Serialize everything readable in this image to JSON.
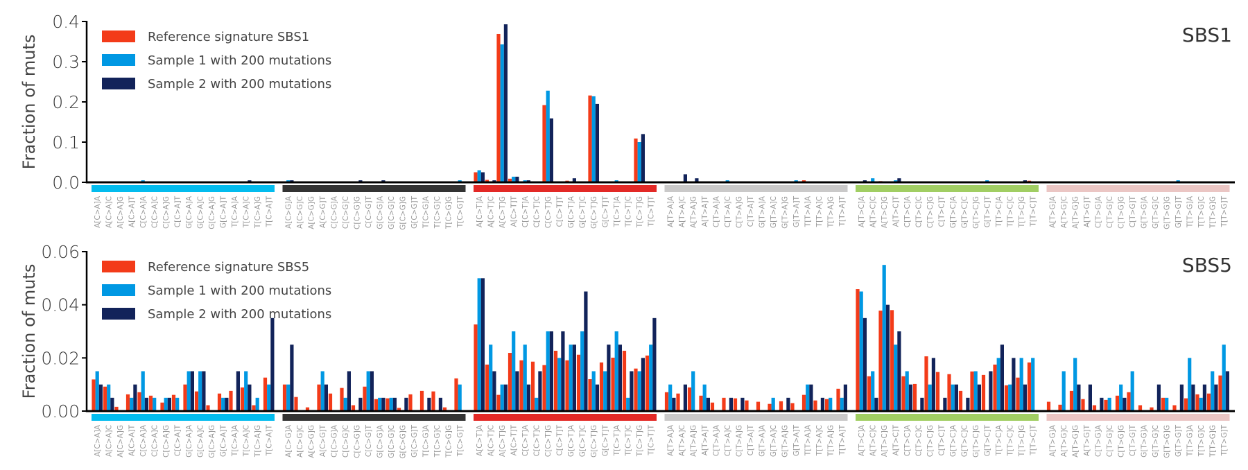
{
  "colors": {
    "reference": "#F33B19",
    "sample1": "#0098E3",
    "sample2": "#12235A",
    "groups": [
      "#03BCEE",
      "#333333",
      "#E32926",
      "#CAC9C9",
      "#A1CE63",
      "#EBC6C4"
    ]
  },
  "chart_data": [
    {
      "type": "bar",
      "title": "SBS1",
      "ylabel": "Fraction of muts",
      "ylim": [
        0,
        0.4
      ],
      "yticks": [
        "0.0",
        "0.1",
        "0.2",
        "0.3",
        "0.4"
      ],
      "ytick_values": [
        0,
        0.1,
        0.2,
        0.3,
        0.4
      ],
      "grid": false,
      "legend_placement": "top-left",
      "categories": [
        "A[C>A]A",
        "A[C>A]C",
        "A[C>A]G",
        "A[C>A]T",
        "C[C>A]A",
        "C[C>A]C",
        "C[C>A]G",
        "C[C>A]T",
        "G[C>A]A",
        "G[C>A]C",
        "G[C>A]G",
        "G[C>A]T",
        "T[C>A]A",
        "T[C>A]C",
        "T[C>A]G",
        "T[C>A]T",
        "A[C>G]A",
        "A[C>G]C",
        "A[C>G]G",
        "A[C>G]T",
        "C[C>G]A",
        "C[C>G]C",
        "C[C>G]G",
        "C[C>G]T",
        "G[C>G]A",
        "G[C>G]C",
        "G[C>G]G",
        "G[C>G]T",
        "T[C>G]A",
        "T[C>G]C",
        "T[C>G]G",
        "T[C>G]T",
        "A[C>T]A",
        "A[C>T]C",
        "A[C>T]G",
        "A[C>T]T",
        "C[C>T]A",
        "C[C>T]C",
        "C[C>T]G",
        "C[C>T]T",
        "G[C>T]A",
        "G[C>T]C",
        "G[C>T]G",
        "G[C>T]T",
        "T[C>T]A",
        "T[C>T]C",
        "T[C>T]G",
        "T[C>T]T",
        "A[T>A]A",
        "A[T>A]C",
        "A[T>A]G",
        "A[T>A]T",
        "C[T>A]A",
        "C[T>A]C",
        "C[T>A]G",
        "C[T>A]T",
        "G[T>A]A",
        "G[T>A]C",
        "G[T>A]G",
        "G[T>A]T",
        "T[T>A]A",
        "T[T>A]C",
        "T[T>A]G",
        "T[T>A]T",
        "A[T>C]A",
        "A[T>C]C",
        "A[T>C]G",
        "A[T>C]T",
        "C[T>C]A",
        "C[T>C]C",
        "C[T>C]G",
        "C[T>C]T",
        "G[T>C]A",
        "G[T>C]C",
        "G[T>C]G",
        "G[T>C]T",
        "T[T>C]A",
        "T[T>C]C",
        "T[T>C]G",
        "T[T>C]T",
        "A[T>G]A",
        "A[T>G]C",
        "A[T>G]G",
        "A[T>G]T",
        "C[T>G]A",
        "C[T>G]C",
        "C[T>G]G",
        "C[T>G]T",
        "G[T>G]A",
        "G[T>G]C",
        "G[T>G]G",
        "G[T>G]T",
        "T[T>G]A",
        "T[T>G]C",
        "T[T>G]G",
        "T[T>G]T"
      ],
      "series": [
        {
          "name": "Reference signature SBS1",
          "values": [
            0,
            0.002,
            0,
            0,
            0,
            0,
            0,
            0,
            0,
            0,
            0,
            0,
            0,
            0.002,
            0,
            0,
            0,
            0,
            0,
            0,
            0,
            0,
            0,
            0,
            0,
            0,
            0,
            0,
            0,
            0,
            0,
            0,
            0.025,
            0.006,
            0.369,
            0.009,
            0.001,
            0,
            0.192,
            0,
            0.004,
            0,
            0.216,
            0,
            0,
            0,
            0.109,
            0,
            0,
            0.002,
            0,
            0,
            0,
            0,
            0,
            0,
            0,
            0,
            0,
            0,
            0.005,
            0,
            0,
            0.002,
            0,
            0,
            0.003,
            0,
            0.002,
            0,
            0,
            0,
            0,
            0,
            0,
            0,
            0,
            0,
            0,
            0.004,
            0,
            0,
            0,
            0,
            0,
            0,
            0,
            0,
            0,
            0,
            0,
            0,
            0,
            0,
            0,
            0
          ]
        },
        {
          "name": "Sample 1 with 200 mutations",
          "values": [
            0,
            0,
            0,
            0,
            0.005,
            0,
            0,
            0,
            0,
            0,
            0,
            0,
            0,
            0,
            0,
            0,
            0.005,
            0,
            0,
            0,
            0,
            0,
            0,
            0,
            0,
            0,
            0,
            0,
            0,
            0,
            0,
            0.005,
            0.03,
            0,
            0.343,
            0.014,
            0.005,
            0,
            0.228,
            0,
            0,
            0,
            0.214,
            0,
            0.005,
            0,
            0.1,
            0,
            0,
            0,
            0,
            0,
            0,
            0.005,
            0,
            0,
            0,
            0,
            0,
            0.005,
            0,
            0,
            0,
            0,
            0,
            0.01,
            0,
            0.005,
            0,
            0,
            0,
            0,
            0,
            0,
            0,
            0.005,
            0,
            0,
            0,
            0,
            0,
            0,
            0,
            0,
            0,
            0,
            0,
            0,
            0,
            0,
            0,
            0.005,
            0,
            0,
            0,
            0
          ]
        },
        {
          "name": "Sample 2 with 200 mutations",
          "values": [
            0,
            0,
            0,
            0,
            0,
            0,
            0,
            0,
            0,
            0,
            0,
            0,
            0,
            0.005,
            0,
            0,
            0.005,
            0,
            0,
            0,
            0,
            0,
            0.005,
            0,
            0.005,
            0,
            0,
            0,
            0,
            0,
            0,
            0,
            0.025,
            0.005,
            0.393,
            0.014,
            0.005,
            0,
            0.159,
            0,
            0.01,
            0,
            0.195,
            0,
            0,
            0,
            0.12,
            0,
            0,
            0.02,
            0.01,
            0,
            0,
            0,
            0,
            0,
            0,
            0,
            0,
            0,
            0,
            0,
            0,
            0,
            0.005,
            0,
            0,
            0.01,
            0,
            0,
            0,
            0,
            0,
            0,
            0,
            0,
            0,
            0,
            0.005,
            0,
            0,
            0,
            0,
            0,
            0,
            0,
            0,
            0,
            0,
            0,
            0,
            0,
            0,
            0,
            0,
            0
          ]
        }
      ]
    },
    {
      "type": "bar",
      "title": "SBS5",
      "ylabel": "Fraction of muts",
      "ylim": [
        0,
        0.06
      ],
      "yticks": [
        "0.00",
        "0.02",
        "0.04",
        "0.06"
      ],
      "ytick_values": [
        0,
        0.02,
        0.04,
        0.06
      ],
      "grid": false,
      "legend_placement": "top-left",
      "categories": [
        "A[C>A]A",
        "A[C>A]C",
        "A[C>A]G",
        "A[C>A]T",
        "C[C>A]A",
        "C[C>A]C",
        "C[C>A]G",
        "C[C>A]T",
        "G[C>A]A",
        "G[C>A]C",
        "G[C>A]G",
        "G[C>A]T",
        "T[C>A]A",
        "T[C>A]C",
        "T[C>A]G",
        "T[C>A]T",
        "A[C>G]A",
        "A[C>G]C",
        "A[C>G]G",
        "A[C>G]T",
        "C[C>G]A",
        "C[C>G]C",
        "C[C>G]G",
        "C[C>G]T",
        "G[C>G]A",
        "G[C>G]C",
        "G[C>G]G",
        "G[C>G]T",
        "T[C>G]A",
        "T[C>G]C",
        "T[C>G]G",
        "T[C>G]T",
        "A[C>T]A",
        "A[C>T]C",
        "A[C>T]G",
        "A[C>T]T",
        "C[C>T]A",
        "C[C>T]C",
        "C[C>T]G",
        "C[C>T]T",
        "G[C>T]A",
        "G[C>T]C",
        "G[C>T]G",
        "G[C>T]T",
        "T[C>T]A",
        "T[C>T]C",
        "T[C>T]G",
        "T[C>T]T",
        "A[T>A]A",
        "A[T>A]C",
        "A[T>A]G",
        "A[T>A]T",
        "C[T>A]A",
        "C[T>A]C",
        "C[T>A]G",
        "C[T>A]T",
        "G[T>A]A",
        "G[T>A]C",
        "G[T>A]G",
        "G[T>A]T",
        "T[T>A]A",
        "T[T>A]C",
        "T[T>A]G",
        "T[T>A]T",
        "A[T>C]A",
        "A[T>C]C",
        "A[T>C]G",
        "A[T>C]T",
        "C[T>C]A",
        "C[T>C]C",
        "C[T>C]G",
        "C[T>C]T",
        "G[T>C]A",
        "G[T>C]C",
        "G[T>C]G",
        "G[T>C]T",
        "T[T>C]A",
        "T[T>C]C",
        "T[T>C]G",
        "T[T>C]T",
        "A[T>G]A",
        "A[T>G]C",
        "A[T>G]G",
        "A[T>G]T",
        "C[T>G]A",
        "C[T>G]C",
        "C[T>G]G",
        "C[T>G]T",
        "G[T>G]A",
        "G[T>G]C",
        "G[T>G]G",
        "G[T>G]T",
        "T[T>G]A",
        "T[T>G]C",
        "T[T>G]G",
        "T[T>G]T"
      ],
      "series": [
        {
          "name": "Reference signature SBS5",
          "values": [
            0.0119,
            0.0092,
            0.0016,
            0.0063,
            0.0071,
            0.0058,
            0.0032,
            0.0061,
            0.01,
            0.0074,
            0.0022,
            0.0066,
            0.0076,
            0.0089,
            0.0022,
            0.0126,
            0.01,
            0.0053,
            0.0014,
            0.01,
            0.0066,
            0.0087,
            0.0022,
            0.0092,
            0.0045,
            0.0048,
            0.0012,
            0.0063,
            0.0076,
            0.0074,
            0.0014,
            0.0123,
            0.0326,
            0.0175,
            0.0061,
            0.0219,
            0.0191,
            0.0186,
            0.0173,
            0.0227,
            0.0191,
            0.0212,
            0.012,
            0.0183,
            0.0201,
            0.0227,
            0.016,
            0.0209,
            0.0071,
            0.0066,
            0.0089,
            0.0058,
            0.0032,
            0.005,
            0.0048,
            0.004,
            0.0035,
            0.0027,
            0.0037,
            0.003,
            0.0061,
            0.004,
            0.0045,
            0.0084,
            0.0459,
            0.0131,
            0.0378,
            0.038,
            0.0131,
            0.0102,
            0.0206,
            0.0147,
            0.0139,
            0.0076,
            0.0149,
            0.0136,
            0.0175,
            0.0097,
            0.0126,
            0.0183,
            0.0035,
            0.0024,
            0.0076,
            0.0045,
            0.0022,
            0.0042,
            0.0058,
            0.0071,
            0.0022,
            0.0014,
            0.005,
            0.0022,
            0.0048,
            0.0063,
            0.0066,
            0.0134
          ]
        },
        {
          "name": "Sample 1 with 200 mutations",
          "values": [
            0.015,
            0.01,
            0,
            0.005,
            0.015,
            0.005,
            0.005,
            0.005,
            0.015,
            0.015,
            0,
            0.005,
            0,
            0.015,
            0.005,
            0.01,
            0.01,
            0,
            0,
            0.015,
            0,
            0.005,
            0,
            0.015,
            0.005,
            0.005,
            0,
            0,
            0,
            0,
            0,
            0.01,
            0.05,
            0.025,
            0.01,
            0.03,
            0.025,
            0.005,
            0.03,
            0.02,
            0.025,
            0.03,
            0.015,
            0.015,
            0.03,
            0.005,
            0.015,
            0.025,
            0.01,
            0,
            0.015,
            0.01,
            0,
            0,
            0,
            0,
            0,
            0.005,
            0,
            0,
            0.01,
            0,
            0.005,
            0.005,
            0.045,
            0.015,
            0.055,
            0.025,
            0.015,
            0,
            0.01,
            0,
            0.01,
            0,
            0.015,
            0,
            0.02,
            0.01,
            0.02,
            0.02,
            0,
            0.015,
            0.02,
            0,
            0,
            0.005,
            0.01,
            0.015,
            0,
            0,
            0.005,
            0,
            0.02,
            0.005,
            0.015,
            0.025
          ]
        },
        {
          "name": "Sample 2 with 200 mutations",
          "values": [
            0.01,
            0.005,
            0,
            0.01,
            0.005,
            0,
            0.005,
            0,
            0.015,
            0.015,
            0,
            0.005,
            0.015,
            0.01,
            0,
            0.035,
            0.025,
            0,
            0,
            0.01,
            0,
            0.015,
            0.005,
            0.015,
            0.005,
            0.005,
            0.005,
            0,
            0.005,
            0.005,
            0,
            0,
            0.05,
            0.015,
            0.01,
            0.015,
            0.01,
            0.015,
            0.03,
            0.03,
            0.025,
            0.045,
            0.01,
            0.025,
            0.025,
            0.015,
            0.02,
            0.035,
            0.005,
            0.01,
            0,
            0.005,
            0,
            0.005,
            0.005,
            0,
            0,
            0,
            0.005,
            0,
            0.01,
            0.005,
            0,
            0.01,
            0.035,
            0.005,
            0.04,
            0.03,
            0.01,
            0.005,
            0.02,
            0.005,
            0.01,
            0.005,
            0.01,
            0.015,
            0.025,
            0.02,
            0.01,
            0,
            0,
            0,
            0.01,
            0.01,
            0.005,
            0,
            0.005,
            0,
            0,
            0.01,
            0,
            0.01,
            0.01,
            0.01,
            0.01,
            0.015
          ]
        }
      ]
    }
  ]
}
